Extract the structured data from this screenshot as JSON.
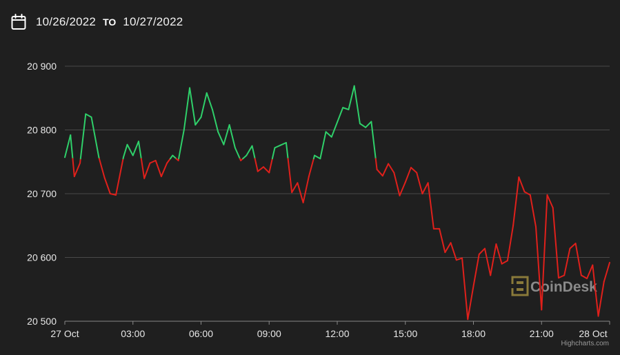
{
  "header": {
    "start_date": "10/26/2022",
    "to_label": "TO",
    "end_date": "10/27/2022",
    "icon": "calendar-icon"
  },
  "watermark": {
    "text": "CoinDesk",
    "icon": "coindesk-logo-icon"
  },
  "credit": "Highcharts.com",
  "colors": {
    "background": "#1f1f1f",
    "up": "#2fd06a",
    "down": "#e0201b",
    "grid": "#4a4a4a",
    "text": "#e8e8e8"
  },
  "chart_data": {
    "type": "line",
    "title": "",
    "xlabel": "",
    "ylabel": "",
    "baseline": 20755,
    "ylim": [
      20500,
      20900
    ],
    "y_ticks": [
      {
        "value": 20500,
        "label": "20 500"
      },
      {
        "value": 20600,
        "label": "20 600"
      },
      {
        "value": 20700,
        "label": "20 700"
      },
      {
        "value": 20800,
        "label": "20 800"
      },
      {
        "value": 20900,
        "label": "20 900"
      }
    ],
    "xlim": [
      0,
      24
    ],
    "x_ticks": [
      {
        "value": 0,
        "label": "27 Oct"
      },
      {
        "value": 3,
        "label": "03:00"
      },
      {
        "value": 6,
        "label": "06:00"
      },
      {
        "value": 9,
        "label": "09:00"
      },
      {
        "value": 12,
        "label": "12:00"
      },
      {
        "value": 15,
        "label": "15:00"
      },
      {
        "value": 18,
        "label": "18:00"
      },
      {
        "value": 21,
        "label": "21:00"
      },
      {
        "value": 24,
        "label": "28 Oct"
      }
    ],
    "grid": true,
    "points": [
      [
        0.0,
        20757
      ],
      [
        0.25,
        20792
      ],
      [
        0.42,
        20727
      ],
      [
        0.67,
        20748
      ],
      [
        0.92,
        20825
      ],
      [
        1.17,
        20820
      ],
      [
        1.5,
        20757
      ],
      [
        1.75,
        20725
      ],
      [
        2.0,
        20700
      ],
      [
        2.25,
        20698
      ],
      [
        2.58,
        20757
      ],
      [
        2.75,
        20777
      ],
      [
        3.0,
        20760
      ],
      [
        3.25,
        20782
      ],
      [
        3.5,
        20724
      ],
      [
        3.75,
        20748
      ],
      [
        4.0,
        20752
      ],
      [
        4.25,
        20727
      ],
      [
        4.5,
        20748
      ],
      [
        4.75,
        20760
      ],
      [
        5.0,
        20752
      ],
      [
        5.25,
        20800
      ],
      [
        5.5,
        20866
      ],
      [
        5.75,
        20808
      ],
      [
        6.0,
        20820
      ],
      [
        6.25,
        20858
      ],
      [
        6.5,
        20832
      ],
      [
        6.75,
        20797
      ],
      [
        7.0,
        20777
      ],
      [
        7.25,
        20808
      ],
      [
        7.5,
        20772
      ],
      [
        7.75,
        20752
      ],
      [
        8.0,
        20760
      ],
      [
        8.25,
        20775
      ],
      [
        8.5,
        20735
      ],
      [
        8.75,
        20742
      ],
      [
        9.0,
        20733
      ],
      [
        9.25,
        20772
      ],
      [
        9.5,
        20776
      ],
      [
        9.75,
        20780
      ],
      [
        10.0,
        20702
      ],
      [
        10.25,
        20717
      ],
      [
        10.5,
        20686
      ],
      [
        10.75,
        20727
      ],
      [
        11.0,
        20760
      ],
      [
        11.25,
        20755
      ],
      [
        11.5,
        20797
      ],
      [
        11.75,
        20789
      ],
      [
        12.0,
        20812
      ],
      [
        12.25,
        20835
      ],
      [
        12.5,
        20832
      ],
      [
        12.75,
        20869
      ],
      [
        13.0,
        20810
      ],
      [
        13.25,
        20804
      ],
      [
        13.5,
        20813
      ],
      [
        13.75,
        20738
      ],
      [
        14.0,
        20728
      ],
      [
        14.25,
        20747
      ],
      [
        14.5,
        20733
      ],
      [
        14.75,
        20697
      ],
      [
        15.0,
        20718
      ],
      [
        15.25,
        20741
      ],
      [
        15.5,
        20733
      ],
      [
        15.75,
        20700
      ],
      [
        16.0,
        20717
      ],
      [
        16.25,
        20645
      ],
      [
        16.5,
        20645
      ],
      [
        16.75,
        20608
      ],
      [
        17.0,
        20623
      ],
      [
        17.25,
        20596
      ],
      [
        17.5,
        20599
      ],
      [
        17.75,
        20503
      ],
      [
        18.0,
        20555
      ],
      [
        18.25,
        20605
      ],
      [
        18.5,
        20614
      ],
      [
        18.75,
        20572
      ],
      [
        19.0,
        20621
      ],
      [
        19.25,
        20590
      ],
      [
        19.5,
        20595
      ],
      [
        19.75,
        20650
      ],
      [
        20.0,
        20726
      ],
      [
        20.25,
        20703
      ],
      [
        20.5,
        20698
      ],
      [
        20.75,
        20648
      ],
      [
        21.0,
        20518
      ],
      [
        21.25,
        20698
      ],
      [
        21.5,
        20678
      ],
      [
        21.75,
        20568
      ],
      [
        22.0,
        20572
      ],
      [
        22.25,
        20614
      ],
      [
        22.5,
        20622
      ],
      [
        22.75,
        20572
      ],
      [
        23.0,
        20567
      ],
      [
        23.25,
        20588
      ],
      [
        23.5,
        20508
      ],
      [
        23.75,
        20562
      ],
      [
        24.0,
        20592
      ]
    ]
  }
}
